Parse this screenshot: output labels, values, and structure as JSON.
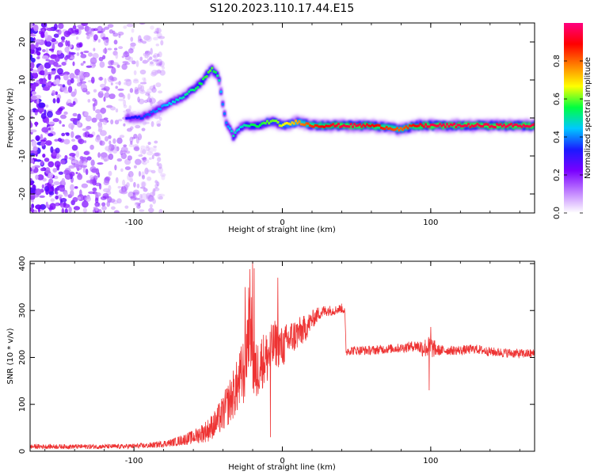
{
  "title": "S120.2023.110.17.44.E15",
  "chart_data": [
    {
      "type": "heatmap",
      "xlabel": "Height of straight line (km)",
      "ylabel": "Frequency (Hz)",
      "xlim": [
        -170,
        170
      ],
      "ylim": [
        -25,
        25
      ],
      "xticks": [
        -100,
        0,
        100
      ],
      "yticks": [
        -20,
        -10,
        0,
        10,
        20
      ],
      "colorbar": {
        "label": "Normalized spectral amplitude",
        "range": [
          0,
          1
        ],
        "ticks": [
          "0.0",
          "0.2",
          "0.4",
          "0.6",
          "0.8"
        ],
        "colors": [
          "#ffffff",
          "#c080ff",
          "#7a00ff",
          "#1a1aff",
          "#00c8ff",
          "#00ff40",
          "#ffff00",
          "#ff8000",
          "#ff0000",
          "#ff0080"
        ]
      },
      "ridge": {
        "x": [
          -105,
          -95,
          -85,
          -75,
          -65,
          -55,
          -48,
          -43,
          -40,
          -38,
          -35,
          -33,
          -30,
          -25,
          -20,
          -15,
          -10,
          -5,
          0,
          10,
          20,
          30,
          40,
          50,
          60,
          70,
          80,
          90,
          100,
          110,
          120,
          130,
          140,
          150,
          160,
          170
        ],
        "y": [
          0,
          0,
          2,
          4,
          6,
          9,
          13,
          11,
          3,
          -1,
          -3,
          -5,
          -3,
          -2,
          -2,
          -2,
          -1,
          -1,
          -2,
          -1,
          -2,
          -2,
          -2,
          -2,
          -2,
          -2.5,
          -3,
          -2,
          -2,
          -2,
          -2,
          -2,
          -2,
          -2,
          -2,
          -2
        ],
        "amplitude": [
          0.3,
          0.35,
          0.4,
          0.45,
          0.5,
          0.55,
          0.6,
          0.5,
          0.4,
          0.4,
          0.45,
          0.5,
          0.45,
          0.5,
          0.55,
          0.55,
          0.6,
          0.6,
          0.65,
          0.75,
          0.85,
          0.9,
          0.95,
          0.95,
          0.9,
          0.85,
          0.8,
          0.9,
          0.95,
          0.95,
          0.95,
          0.95,
          0.95,
          0.95,
          0.95,
          0.95
        ]
      },
      "noise_region": {
        "x": [
          -170,
          -80
        ],
        "y": [
          -25,
          25
        ],
        "amplitude": [
          0.05,
          0.3
        ]
      }
    },
    {
      "type": "line",
      "xlabel": "Height of straight line (km)",
      "ylabel": "SNR (10 * v/v)",
      "xlim": [
        -170,
        170
      ],
      "ylim": [
        0,
        405
      ],
      "xticks": [
        -100,
        0,
        100
      ],
      "yticks": [
        0,
        100,
        200,
        300,
        400
      ],
      "color": "#ee3333",
      "series": [
        {
          "x": [
            -170,
            -140,
            -110,
            -90,
            -75,
            -60,
            -50,
            -45,
            -40,
            -35,
            -30,
            -25,
            -22,
            -20,
            -18,
            -15,
            -10,
            -5,
            0,
            5,
            10,
            15,
            20,
            25,
            30,
            35,
            40,
            42,
            43,
            44,
            50,
            60,
            70,
            80,
            90,
            95,
            100,
            105,
            110,
            120,
            130,
            140,
            150,
            160,
            170
          ],
          "y": [
            10,
            10,
            10,
            12,
            18,
            30,
            45,
            60,
            80,
            110,
            140,
            180,
            300,
            200,
            160,
            190,
            200,
            230,
            220,
            240,
            250,
            260,
            280,
            295,
            300,
            300,
            305,
            300,
            210,
            215,
            215,
            215,
            218,
            220,
            225,
            220,
            222,
            215,
            215,
            215,
            218,
            212,
            210,
            208,
            208
          ],
          "spread": [
            5,
            5,
            5,
            6,
            8,
            15,
            25,
            30,
            40,
            50,
            60,
            80,
            100,
            90,
            70,
            60,
            60,
            50,
            45,
            40,
            35,
            30,
            20,
            15,
            12,
            10,
            10,
            10,
            10,
            10,
            10,
            10,
            10,
            10,
            12,
            20,
            25,
            12,
            10,
            10,
            10,
            10,
            10,
            10,
            10
          ],
          "spikes": [
            [
              -20,
              404
            ],
            [
              -19,
              390
            ],
            [
              -22,
              330
            ],
            [
              -25,
              350
            ],
            [
              -8,
              30
            ],
            [
              -3,
              370
            ],
            [
              100,
              265
            ],
            [
              99,
              130
            ]
          ]
        }
      ]
    }
  ]
}
